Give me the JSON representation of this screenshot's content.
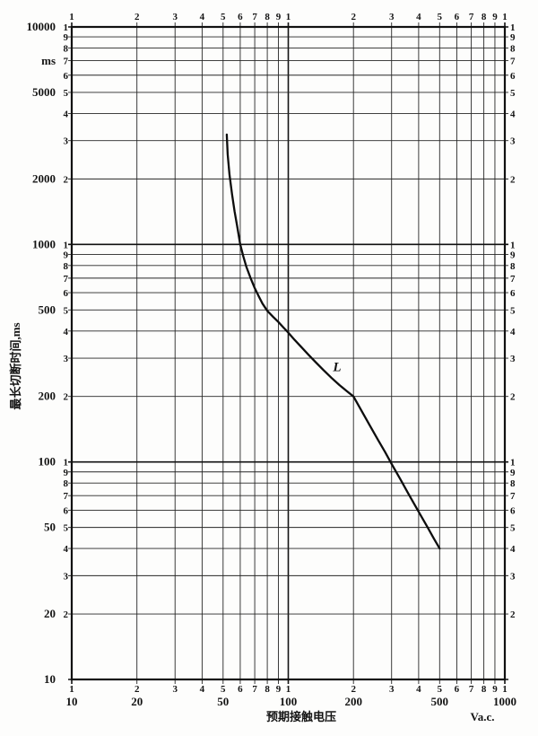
{
  "chart_data": {
    "type": "line",
    "x_scale": "log",
    "y_scale": "log",
    "xlim": [
      10,
      1000
    ],
    "ylim": [
      10,
      10000
    ],
    "grid": true,
    "xlabel": "预期接触电压",
    "x_unit": "Va.c.",
    "ylabel": "最长切断时间,ms",
    "y_unit": "ms",
    "x_decade_tick_labels": [
      "10",
      "20",
      "50",
      "100",
      "200",
      "500",
      "1000"
    ],
    "y_decade_tick_labels": [
      "10000",
      "5000",
      "2000",
      "1000",
      "500",
      "200",
      "100",
      "50",
      "20",
      "10"
    ],
    "x_digit_labels": [
      "1",
      "2",
      "3",
      "4",
      "5",
      "6",
      "7",
      "8",
      "9",
      "1",
      "2",
      "3",
      "4",
      "5",
      "6",
      "7",
      "8",
      "9",
      "1"
    ],
    "y_digit_labels": [
      "1",
      "9",
      "8",
      "7",
      "6",
      "5",
      "4",
      "3",
      "2",
      "1",
      "9",
      "8",
      "7",
      "6",
      "5",
      "4",
      "3",
      "2",
      "1",
      "9",
      "8",
      "7",
      "6",
      "5",
      "4",
      "3",
      "2"
    ],
    "series": [
      {
        "name": "L",
        "label_at": [
          168,
          262
        ],
        "points": [
          [
            52,
            3200
          ],
          [
            52.5,
            2600
          ],
          [
            53.5,
            2100
          ],
          [
            55,
            1700
          ],
          [
            56.5,
            1420
          ],
          [
            58,
            1220
          ],
          [
            60,
            1000
          ],
          [
            62,
            880
          ],
          [
            64,
            790
          ],
          [
            67,
            700
          ],
          [
            70,
            630
          ],
          [
            73,
            578
          ],
          [
            76,
            535
          ],
          [
            80,
            495
          ],
          [
            85,
            465
          ],
          [
            90,
            440
          ],
          [
            95,
            415
          ],
          [
            100,
            393
          ],
          [
            107,
            364
          ],
          [
            115,
            337
          ],
          [
            124,
            311
          ],
          [
            134,
            287
          ],
          [
            145,
            265
          ],
          [
            158,
            244
          ],
          [
            172,
            226
          ],
          [
            186,
            212
          ],
          [
            200,
            200
          ],
          [
            220,
            169
          ],
          [
            240,
            145
          ],
          [
            260,
            126
          ],
          [
            280,
            111
          ],
          [
            300,
            98
          ],
          [
            330,
            83
          ],
          [
            360,
            71
          ],
          [
            400,
            59
          ],
          [
            440,
            50
          ],
          [
            470,
            44.5
          ],
          [
            500,
            40
          ]
        ]
      }
    ]
  }
}
